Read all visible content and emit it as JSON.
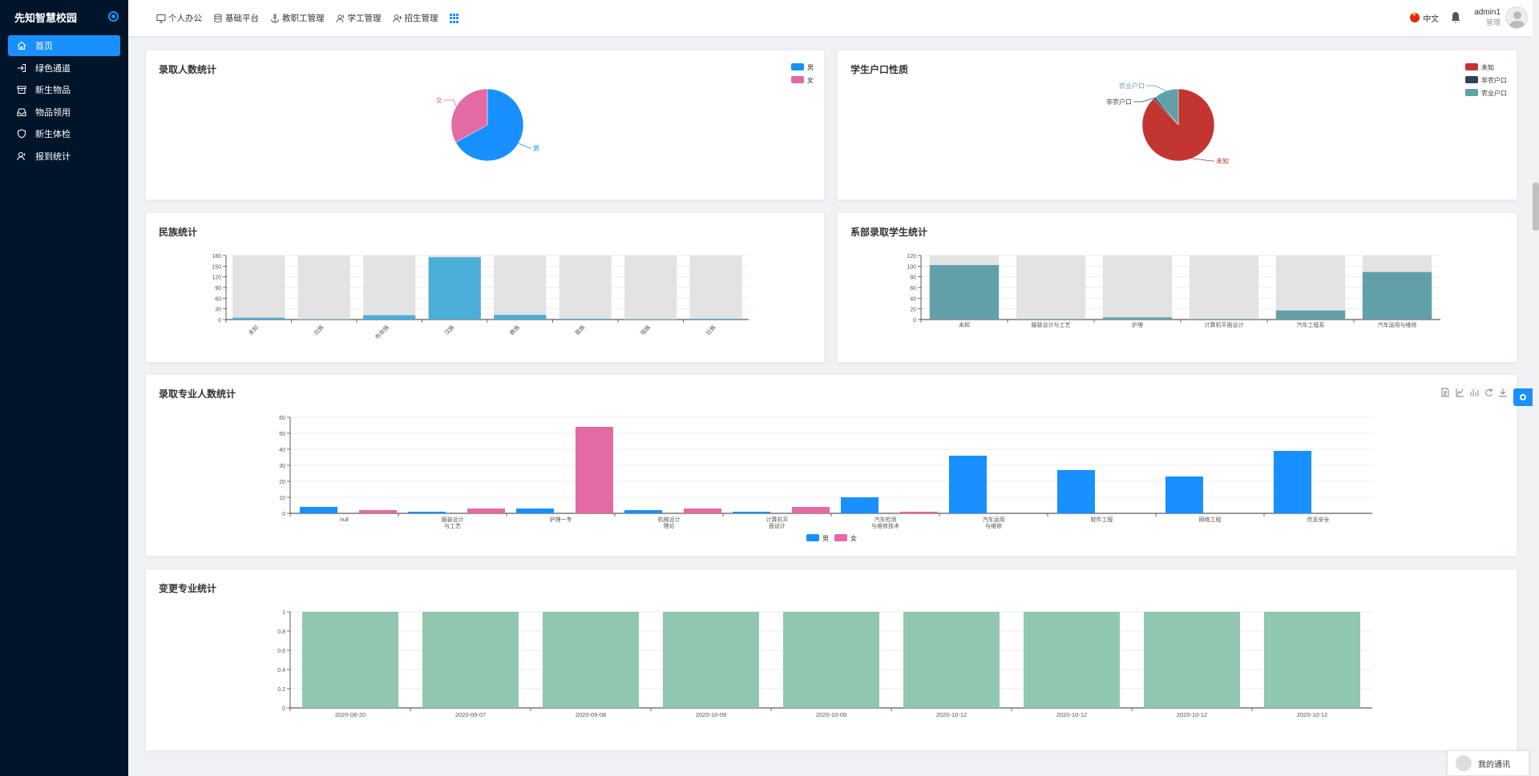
{
  "brand": {
    "title": "先知智慧校园"
  },
  "sidebar": {
    "items": [
      {
        "label": "首页",
        "icon": "home-icon",
        "active": true
      },
      {
        "label": "绿色通道",
        "icon": "login-icon",
        "active": false
      },
      {
        "label": "新生物品",
        "icon": "archive-icon",
        "active": false
      },
      {
        "label": "物品领用",
        "icon": "inbox-icon",
        "active": false
      },
      {
        "label": "新生体检",
        "icon": "shield-icon",
        "active": false
      },
      {
        "label": "报到统计",
        "icon": "user-icon",
        "active": false
      }
    ]
  },
  "topbar": {
    "menu": [
      {
        "label": "个人办公",
        "icon": "monitor-icon"
      },
      {
        "label": "基础平台",
        "icon": "database-icon"
      },
      {
        "label": "教职工管理",
        "icon": "anchor-icon"
      },
      {
        "label": "学工管理",
        "icon": "users-icon"
      },
      {
        "label": "招生管理",
        "icon": "user-add-icon"
      }
    ],
    "lang": "中文",
    "username": "admin1",
    "role": "管理"
  },
  "colors": {
    "accent": "#1890ff",
    "sidebar": "#001529",
    "male": "#1890ff",
    "female": "#e36aa3",
    "teal": "#61a0a8",
    "red": "#c23531",
    "dark": "#2f4554",
    "green": "#91c7ae",
    "ethnic": "#4aaed8"
  },
  "floating": {
    "chat_label": "我的通讯"
  },
  "chart_data": [
    {
      "id": "admission-pie",
      "type": "pie",
      "title": "录取人数统计",
      "legend": [
        "男",
        "女"
      ],
      "slices": [
        {
          "name": "男",
          "value": 67
        },
        {
          "name": "女",
          "value": 33
        }
      ]
    },
    {
      "id": "hukou-pie",
      "type": "pie",
      "title": "学生户口性质",
      "legend": [
        "未知",
        "非农户口",
        "农业户口"
      ],
      "slices": [
        {
          "name": "未知",
          "value": 88
        },
        {
          "name": "非农户口",
          "value": 1
        },
        {
          "name": "农业户口",
          "value": 11
        }
      ]
    },
    {
      "id": "ethnic-bar",
      "type": "bar",
      "title": "民族统计",
      "categories": [
        "未知",
        "白族",
        "布依族",
        "汉族",
        "彝族",
        "苗族",
        "瑶族",
        "壮族"
      ],
      "values": [
        5,
        1,
        12,
        175,
        13,
        2,
        1,
        2
      ],
      "ylim": [
        0,
        180
      ],
      "yticks": [
        0,
        30,
        60,
        90,
        120,
        150,
        180
      ]
    },
    {
      "id": "dept-bar",
      "type": "bar",
      "title": "系部录取学生统计",
      "categories": [
        "未知",
        "服装设计与工艺",
        "护理",
        "计算机平面设计",
        "汽车工程系",
        "汽车运用与维修"
      ],
      "values": [
        102,
        1,
        4,
        1,
        17,
        89
      ],
      "ylim": [
        0,
        120
      ],
      "yticks": [
        0,
        20,
        40,
        60,
        80,
        100,
        120
      ]
    },
    {
      "id": "major-bar",
      "type": "bar",
      "title": "录取专业人数统计",
      "categories": [
        [
          "null"
        ],
        [
          "服装设计",
          "与工艺"
        ],
        [
          "护理一专"
        ],
        [
          "机械设计",
          "理论"
        ],
        [
          "计算机平",
          "面设计"
        ],
        [
          "汽车检测",
          "与维修技术"
        ],
        [
          "汽车运用",
          "与维修"
        ],
        [
          "软件工程"
        ],
        [
          "网络工程"
        ],
        [
          "信息安全"
        ]
      ],
      "series": [
        {
          "name": "男",
          "values": [
            4,
            1,
            3,
            2,
            1,
            10,
            36,
            27,
            23,
            39
          ]
        },
        {
          "name": "女",
          "values": [
            2,
            3,
            54,
            3,
            4,
            1,
            0,
            0,
            0,
            0
          ]
        }
      ],
      "legend": [
        "男",
        "女"
      ],
      "ylim": [
        0,
        60
      ],
      "yticks": [
        0,
        10,
        20,
        30,
        40,
        50,
        60
      ]
    },
    {
      "id": "change-bar",
      "type": "bar",
      "title": "变更专业统计",
      "categories": [
        "2020-08-20",
        "2020-09-07",
        "2020-09-08",
        "2020-10-09",
        "2020-10-09",
        "2020-10-12",
        "2020-10-12",
        "2020-10-12",
        "2020-10-12"
      ],
      "values": [
        1,
        1,
        1,
        1,
        1,
        1,
        1,
        1,
        1
      ],
      "ylim": [
        0,
        1
      ],
      "yticks": [
        "0",
        "0.2",
        "0.4",
        "0.6",
        "0.8",
        "1"
      ]
    }
  ]
}
